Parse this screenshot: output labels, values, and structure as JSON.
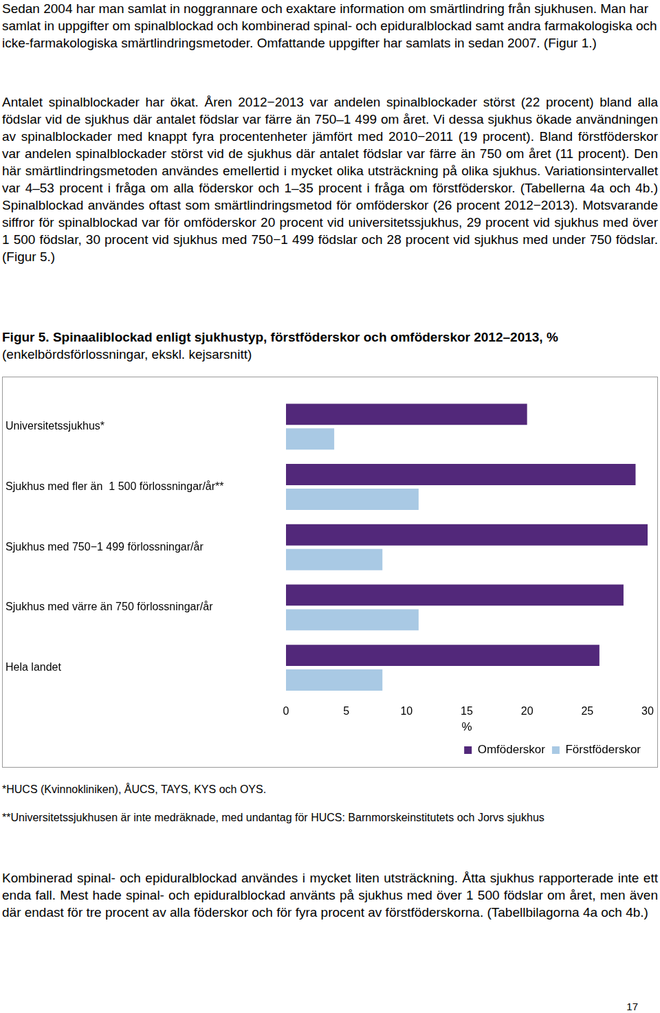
{
  "paragraphs": [
    "Sedan 2004 har man samlat in noggrannare och exaktare information om smärtlindring från sjukhusen. Man har samlat in uppgifter om spinalblockad och kombinerad spinal- och epiduralblockad samt andra farmakologiska och icke-farmakologiska smärtlindringsmetoder. Omfattande uppgifter har samlats in sedan 2007. (Figur 1.)",
    "Antalet spinalblockader har ökat. Åren 2012−2013 var andelen spinalblockader störst (22 procent) bland alla födslar vid de sjukhus där antalet födslar var färre än 750–1 499 om året. Vi dessa sjukhus ökade användningen av spinalblockader med knappt fyra procentenheter jämfört med 2010−2011 (19 procent). Bland förstföderskor var andelen spinalblockader störst vid de sjukhus där antalet födslar var färre än 750 om året (11 procent). Den här smärtlindringsmetoden användes emellertid i mycket olika utsträckning på olika sjukhus. Variationsintervallet var 4–53 procent i fråga om alla föderskor och 1–35 procent i fråga om förstföderskor. (Tabellerna 4a och 4b.) Spinalblockad användes oftast som smärtlindringsmetod för omföderskor (26 procent 2012−2013). Motsvarande siffror för spinalblockad var för omföderskor 20 procent vid universitetssjukhus, 29 procent vid sjukhus med över 1 500 födslar, 30 procent vid sjukhus med 750−1 499 födslar och 28 procent vid sjukhus med under 750 födslar. (Figur 5.)",
    "Kombinerad spinal- och epiduralblockad användes i mycket liten utsträckning. Åtta sjukhus rapporterade inte ett enda fall. Mest hade spinal- och epiduralblockad använts på sjukhus med över 1 500 födslar om året, men även där endast för tre procent av alla föderskor och för fyra procent av förstföderskorna. (Tabellbilagorna 4a och 4b.)"
  ],
  "figure_title": [
    "Figur 5. Spinaaliblockad enligt sjukhustyp, förstföderskor och omföderskor 2012–2013, %",
    "(enkelbördsförlossningar, ekskl. kejsarsnitt)"
  ],
  "footnotes": [
    "*HUCS (Kvinnokliniken), ÅUCS, TAYS, KYS och OYS.",
    "**Universitetssjukhusen är inte medräknade, med undantag för HUCS: Barnmorskeinstitutets och Jorvs sjukhus"
  ],
  "page_number": "17",
  "chart_data": {
    "type": "bar",
    "orientation": "horizontal",
    "categories": [
      "Universitetssjukhus*",
      "Sjukhus med fler än  1 500 förlossningar/år**",
      "Sjukhus med 750−1 499 förlossningar/år",
      "Sjukhus med värre än 750 förlossningar/år",
      "Hela landet"
    ],
    "series": [
      {
        "name": "Omföderskor",
        "color": "#52287a",
        "values": [
          20,
          29,
          30,
          28,
          26
        ]
      },
      {
        "name": "Förstföderskor",
        "color": "#a9c9e4",
        "values": [
          4,
          11,
          8,
          11,
          8
        ]
      }
    ],
    "x_label": "%",
    "xlim": [
      0,
      30
    ],
    "xticks": [
      0,
      5,
      10,
      15,
      20,
      25,
      30
    ],
    "grid": false,
    "legend": "bottom"
  }
}
